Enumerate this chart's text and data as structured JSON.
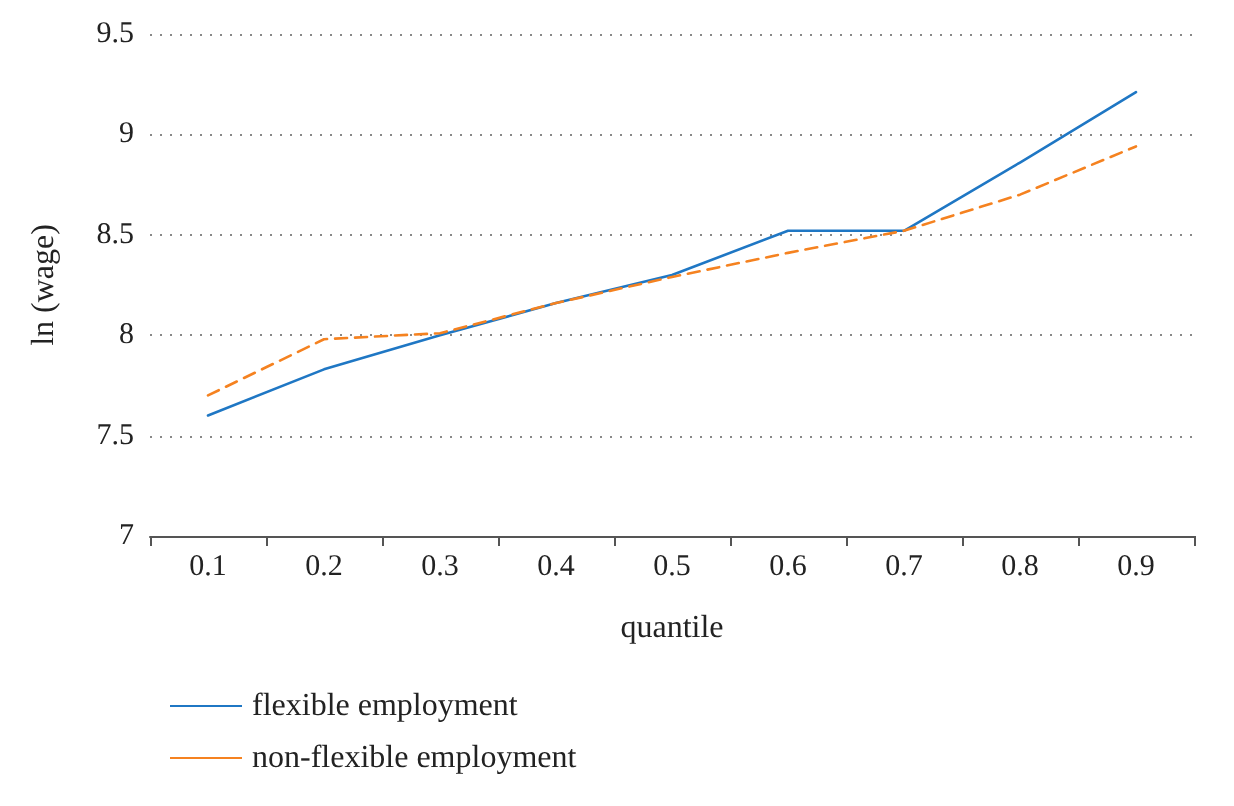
{
  "chart_data": {
    "type": "line",
    "xlabel": "quantile",
    "ylabel": "ln (wage)",
    "categories": [
      "0.1",
      "0.2",
      "0.3",
      "0.4",
      "0.5",
      "0.6",
      "0.7",
      "0.8",
      "0.9"
    ],
    "series": [
      {
        "name": "flexible employment",
        "color": "#1f77c4",
        "line_style": "solid",
        "values": [
          7.6,
          7.83,
          8.0,
          8.16,
          8.3,
          8.52,
          8.52,
          8.86,
          9.21
        ]
      },
      {
        "name": "non-flexible employment",
        "color": "#f58220",
        "line_style": "dashed",
        "values": [
          7.7,
          7.98,
          8.01,
          8.16,
          8.29,
          8.41,
          8.52,
          8.7,
          8.94
        ]
      }
    ],
    "ylim": [
      7,
      9.5
    ],
    "yticks": [
      7,
      7.5,
      8,
      8.5,
      9,
      9.5
    ],
    "grid": "y",
    "legend": "bottom",
    "marker": "none"
  }
}
